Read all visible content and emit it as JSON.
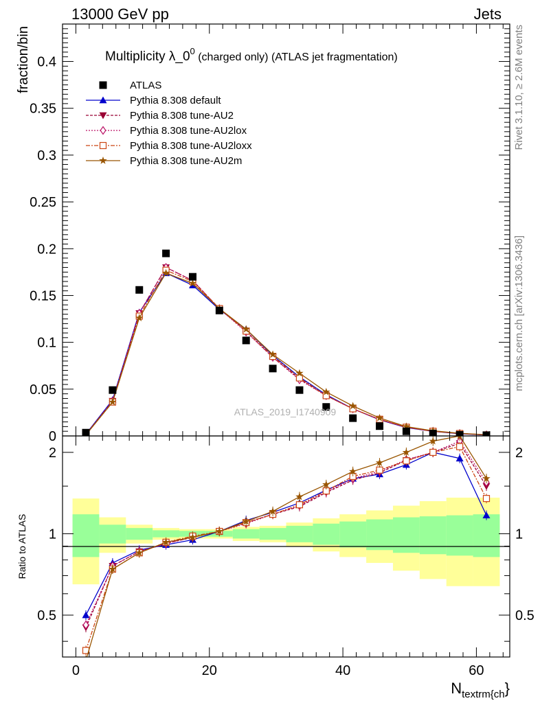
{
  "header": {
    "left": "13000 GeV pp",
    "right": "Jets"
  },
  "side": {
    "rivet": "Rivet 3.1.10, ≥ 2.6M events",
    "mcplots": "mcplots.cern.ch [arXiv:1306.3436]"
  },
  "watermark": "ATLAS_2019_I1740909",
  "chart_data": {
    "type": "scatter",
    "title": "Multiplicity λ_0⁰ (charged only) (ATLAS jet fragmentation)",
    "title_main": "Multiplicity λ_0",
    "title_sup": "0",
    "title_rest": " (charged only) (ATLAS jet fragmentation)",
    "xlabel_main": "N",
    "xlabel_sub": "textrm{ch",
    "xlabel_end": "}",
    "ylabel": "fraction/bin",
    "ratio_ylabel": "Ratio to ATLAS",
    "xlim": [
      -2,
      65
    ],
    "ylim": [
      0,
      0.44
    ],
    "ratio_ylim": [
      0.35,
      2.3
    ],
    "ratio_log": true,
    "x_ticks": [
      "0",
      "20",
      "40",
      "60"
    ],
    "x_tick_values": [
      0,
      20,
      40,
      60
    ],
    "y_ticks": [
      "0",
      "0.05",
      "0.1",
      "0.15",
      "0.2",
      "0.25",
      "0.3",
      "0.35",
      "0.4"
    ],
    "y_tick_values": [
      0,
      0.05,
      0.1,
      0.15,
      0.2,
      0.25,
      0.3,
      0.35,
      0.4
    ],
    "ratio_ticks": [
      "0.5",
      "1",
      "2"
    ],
    "ratio_tick_values": [
      0.5,
      1,
      2
    ],
    "x": [
      1.5,
      5.5,
      9.5,
      13.5,
      17.5,
      21.5,
      25.5,
      29.5,
      33.5,
      37.5,
      41.5,
      45.5,
      49.5,
      53.5,
      57.5,
      61.5
    ],
    "bin_edges": [
      -0.5,
      3.5,
      7.5,
      11.5,
      15.5,
      19.5,
      23.5,
      27.5,
      31.5,
      35.5,
      39.5,
      43.5,
      47.5,
      51.5,
      55.5,
      59.5,
      63.5
    ],
    "data": {
      "name": "ATLAS",
      "color": "#000000",
      "values": [
        0.0035,
        0.049,
        0.156,
        0.195,
        0.17,
        0.134,
        0.102,
        0.072,
        0.049,
        0.031,
        0.019,
        0.0105,
        0.005,
        0.0025,
        0.0012,
        0.0008
      ]
    },
    "band_inner": [
      0.18,
      0.08,
      0.05,
      0.03,
      0.025,
      0.025,
      0.04,
      0.05,
      0.07,
      0.09,
      0.11,
      0.13,
      0.15,
      0.16,
      0.17,
      0.18
    ],
    "band_outer": [
      0.35,
      0.15,
      0.08,
      0.05,
      0.04,
      0.04,
      0.06,
      0.07,
      0.1,
      0.14,
      0.18,
      0.22,
      0.27,
      0.32,
      0.36,
      0.36
    ],
    "band_colors": {
      "inner": "#99ff99",
      "outer": "#ffff99"
    },
    "series": [
      {
        "name": "Pythia 8.308 default",
        "color": "#0000cc",
        "marker": "triangle-up",
        "dash": "solid",
        "values": [
          0.0019,
          0.0385,
          0.132,
          0.174,
          0.161,
          0.135,
          0.114,
          0.086,
          0.063,
          0.044,
          0.029,
          0.0172,
          0.0089,
          0.0049,
          0.0023,
          0.0009
        ],
        "ratio": [
          0.5,
          0.78,
          0.87,
          0.91,
          0.95,
          1.02,
          1.12,
          1.2,
          1.3,
          1.45,
          1.6,
          1.66,
          1.8,
          2.0,
          1.9,
          1.17
        ]
      },
      {
        "name": "Pythia 8.308 tune-AU2",
        "color": "#990033",
        "marker": "triangle-down",
        "dash": "4,2",
        "values": [
          0.0016,
          0.0373,
          0.131,
          0.18,
          0.166,
          0.136,
          0.112,
          0.084,
          0.061,
          0.043,
          0.029,
          0.0175,
          0.0093,
          0.005,
          0.0026,
          0.0012
        ],
        "ratio": [
          0.45,
          0.76,
          0.86,
          0.92,
          0.97,
          1.02,
          1.1,
          1.18,
          1.26,
          1.42,
          1.58,
          1.68,
          1.87,
          2.0,
          2.16,
          1.5
        ]
      },
      {
        "name": "Pythia 8.308 tune-AU2lox",
        "color": "#bb1166",
        "marker": "diamond",
        "dash": "2,2",
        "values": [
          0.0016,
          0.0373,
          0.131,
          0.18,
          0.166,
          0.136,
          0.111,
          0.084,
          0.06,
          0.043,
          0.029,
          0.0175,
          0.0093,
          0.005,
          0.0026,
          0.0012
        ],
        "ratio": [
          0.46,
          0.76,
          0.86,
          0.92,
          0.97,
          1.02,
          1.09,
          1.18,
          1.27,
          1.43,
          1.6,
          1.7,
          1.88,
          2.0,
          2.2,
          1.55
        ]
      },
      {
        "name": "Pythia 8.308 tune-AU2loxx",
        "color": "#cc4411",
        "marker": "square-open",
        "dash": "6,2,2,2",
        "values": [
          0.0013,
          0.0362,
          0.128,
          0.177,
          0.165,
          0.136,
          0.112,
          0.085,
          0.062,
          0.043,
          0.029,
          0.0178,
          0.0093,
          0.005,
          0.0026,
          0.0011
        ],
        "ratio": [
          0.37,
          0.74,
          0.85,
          0.93,
          0.98,
          1.02,
          1.1,
          1.18,
          1.28,
          1.44,
          1.63,
          1.72,
          1.86,
          2.0,
          2.1,
          1.35
        ]
      },
      {
        "name": "Pythia 8.308 tune-AU2m",
        "color": "#995500",
        "marker": "star",
        "dash": "solid",
        "values": [
          0.0012,
          0.0362,
          0.126,
          0.174,
          0.163,
          0.136,
          0.114,
          0.087,
          0.067,
          0.047,
          0.032,
          0.0192,
          0.01,
          0.0055,
          0.0028,
          0.0013
        ],
        "ratio": [
          0.34,
          0.74,
          0.85,
          0.93,
          0.97,
          1.02,
          1.11,
          1.21,
          1.37,
          1.52,
          1.7,
          1.83,
          2.0,
          2.2,
          2.3,
          1.6
        ]
      }
    ]
  }
}
